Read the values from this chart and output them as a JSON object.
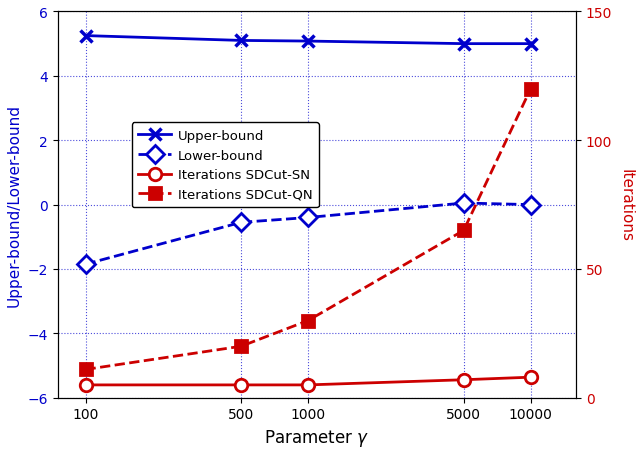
{
  "x": [
    100,
    500,
    1000,
    5000,
    10000
  ],
  "upper_bound": [
    5.25,
    5.1,
    5.08,
    5.0,
    5.0
  ],
  "lower_bound": [
    -1.85,
    -0.55,
    -0.4,
    0.05,
    0.0
  ],
  "iter_sn": [
    5,
    5,
    5,
    7,
    8
  ],
  "iter_qn": [
    11,
    20,
    30,
    65,
    120
  ],
  "left_ylim": [
    -6,
    6
  ],
  "right_ylim": [
    0,
    150
  ],
  "left_yticks": [
    -6,
    -4,
    -2,
    0,
    2,
    4,
    6
  ],
  "right_yticks": [
    0,
    50,
    100,
    150
  ],
  "left_ylabel": "Upper-bound/Lower-bound",
  "right_ylabel": "Iterations",
  "xlabel": "Parameter $\\gamma$",
  "legend_labels": [
    "Upper-bound",
    "Lower-bound",
    "Iterations SDCut-SN",
    "Iterations SDCut-QN"
  ],
  "blue_color": "#0000CC",
  "red_color": "#CC0000",
  "figsize": [
    6.4,
    4.56
  ],
  "dpi": 100
}
